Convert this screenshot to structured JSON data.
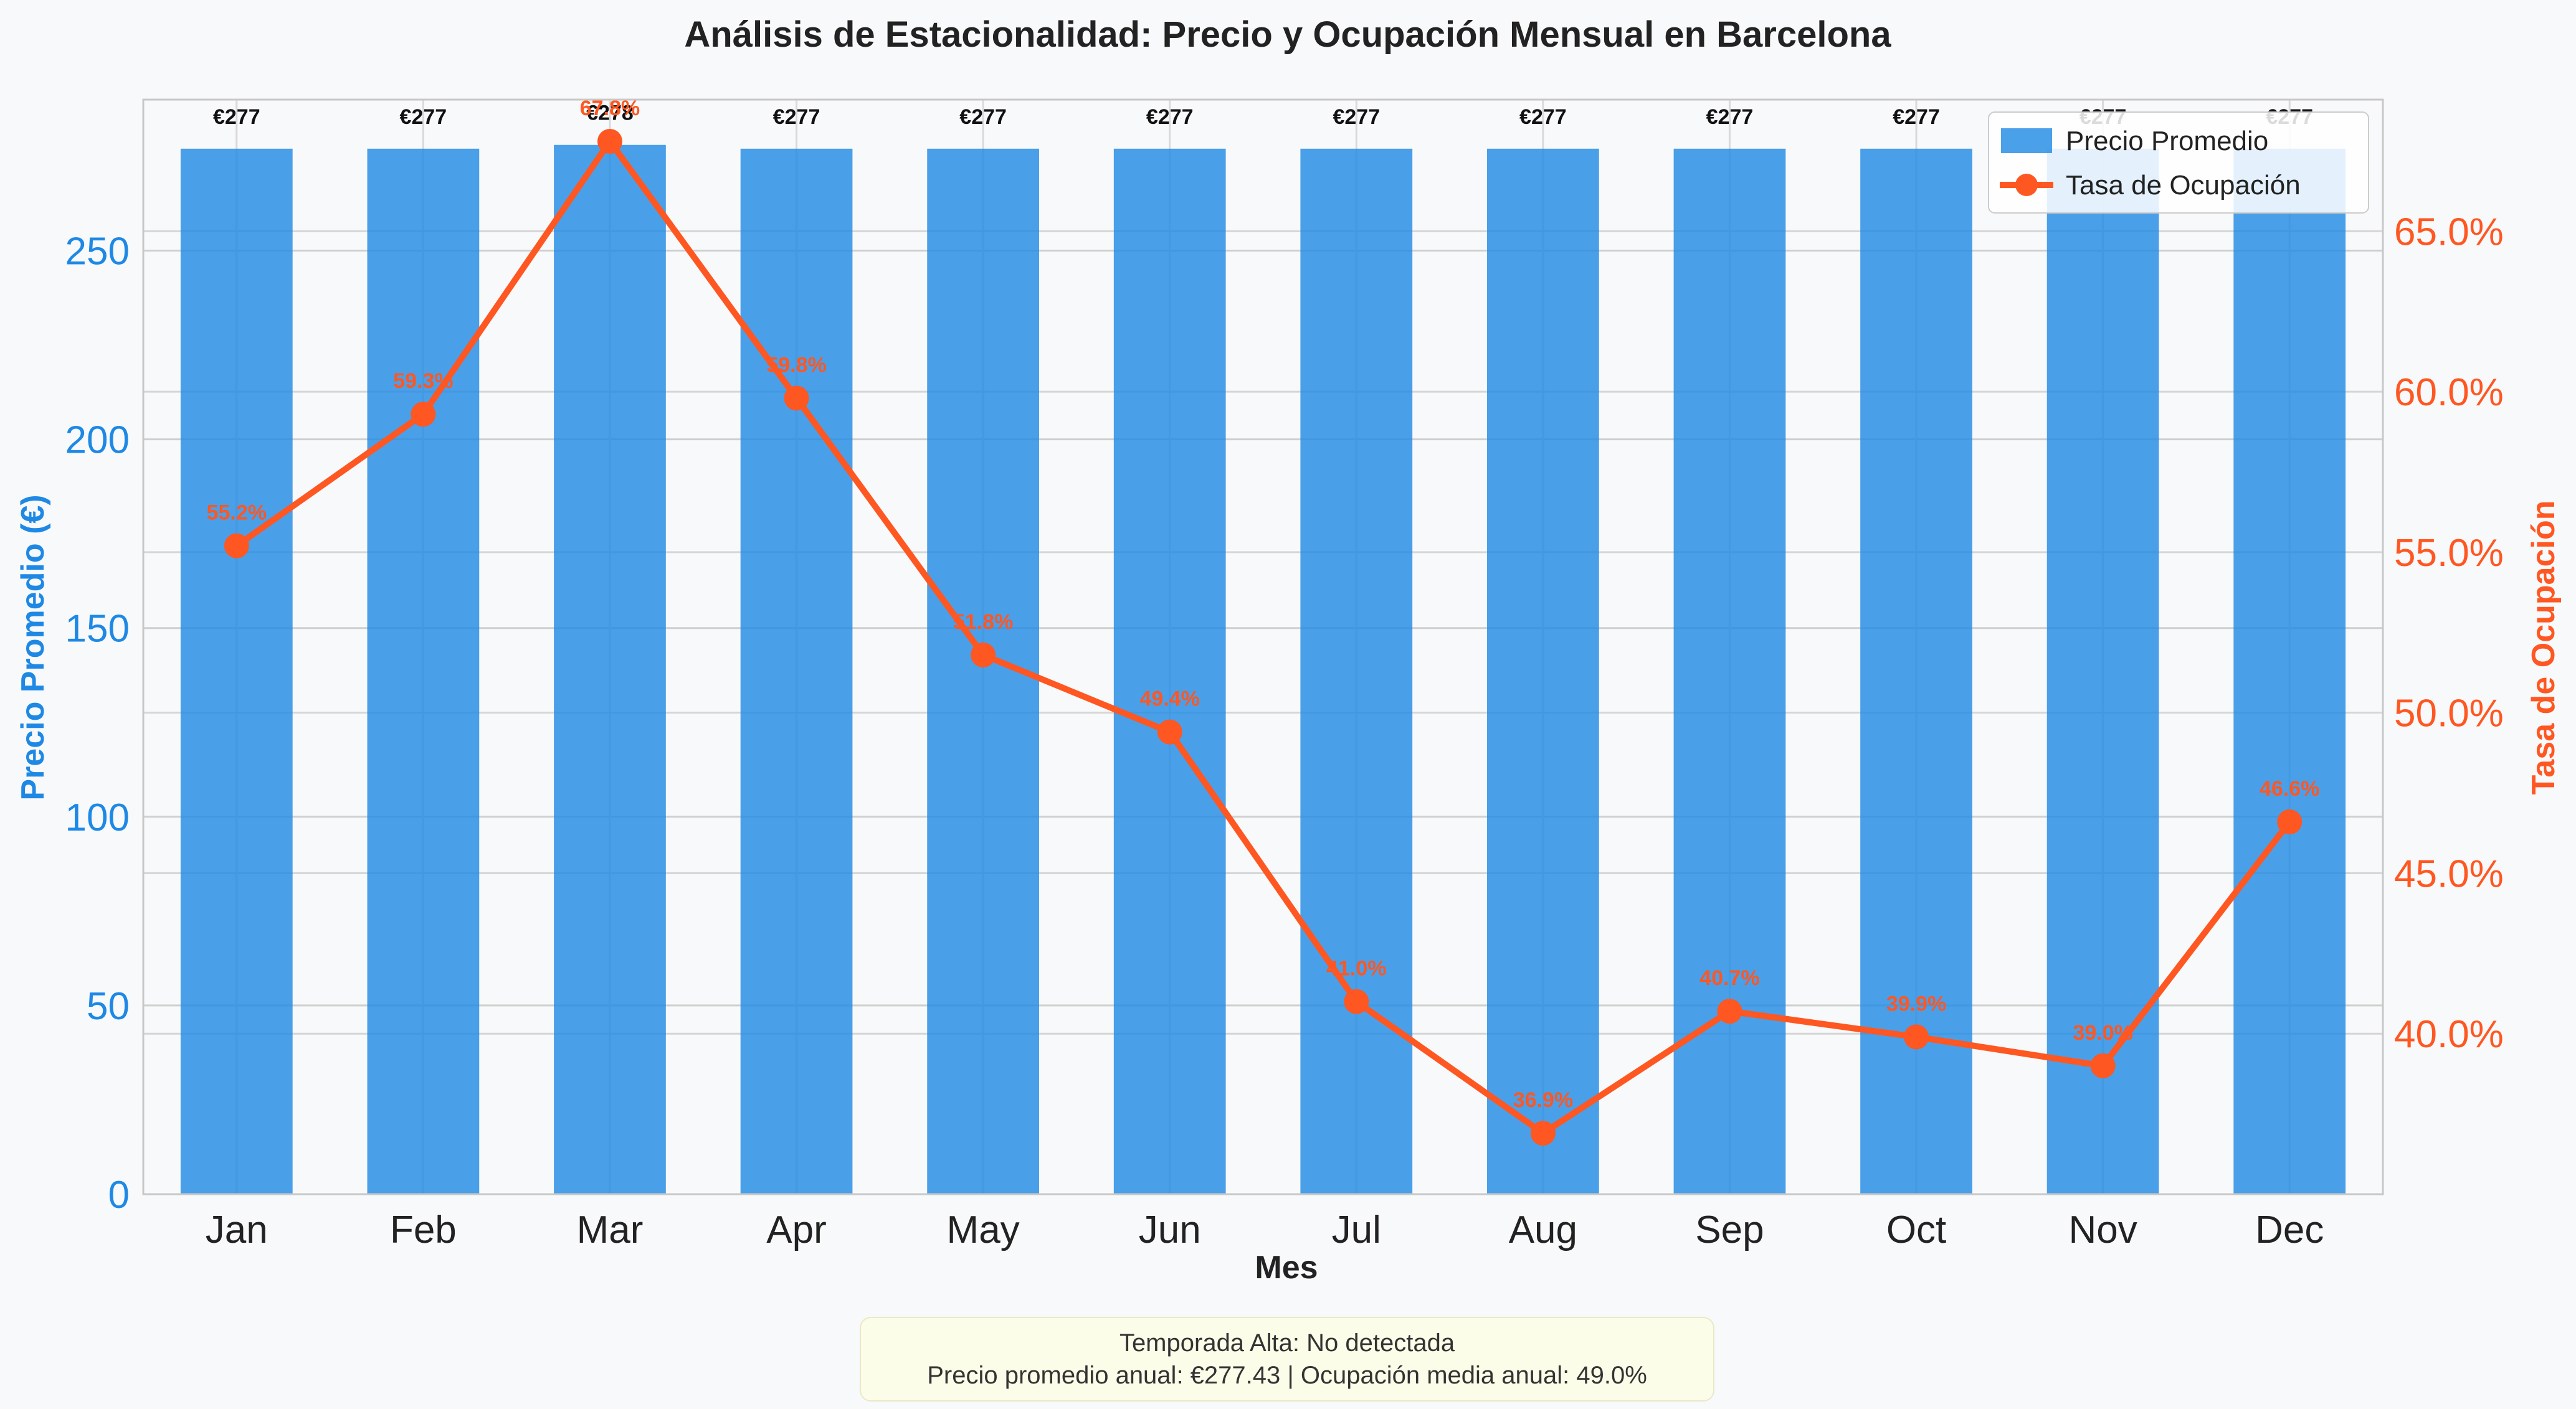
{
  "chart_data": {
    "type": "bar+line",
    "title": "Análisis de Estacionalidad: Precio y Ocupación Mensual en Barcelona",
    "xlabel": "Mes",
    "ylabel_left": "Precio Promedio (€)",
    "ylabel_right": "Tasa de Ocupación",
    "categories": [
      "Jan",
      "Feb",
      "Mar",
      "Apr",
      "May",
      "Jun",
      "Jul",
      "Aug",
      "Sep",
      "Oct",
      "Nov",
      "Dec"
    ],
    "ylim_left": [
      0,
      290
    ],
    "ylim_right": [
      35,
      69.1
    ],
    "yticks_left": [
      0,
      50,
      100,
      150,
      200,
      250
    ],
    "yticks_right": [
      40,
      45,
      50,
      55,
      60,
      65
    ],
    "yticks_right_labels": [
      "40.0%",
      "45.0%",
      "50.0%",
      "55.0%",
      "60.0%",
      "65.0%"
    ],
    "grid": true,
    "legend_position": "top-right",
    "series": [
      {
        "name": "Precio Promedio",
        "kind": "bar",
        "axis": "left",
        "color": "#1e88e5",
        "values": [
          277,
          277,
          278,
          277,
          277,
          277,
          277,
          277,
          277,
          277,
          277,
          277
        ],
        "labels": [
          "€277",
          "€277",
          "€278",
          "€277",
          "€277",
          "€277",
          "€277",
          "€277",
          "€277",
          "€277",
          "€277",
          "€277"
        ]
      },
      {
        "name": "Tasa de Ocupación",
        "kind": "line",
        "axis": "right",
        "color": "#ff5722",
        "values": [
          55.2,
          59.3,
          67.8,
          59.8,
          51.8,
          49.4,
          41.0,
          36.9,
          40.7,
          39.9,
          39.0,
          46.6
        ],
        "labels": [
          "55.2%",
          "59.3%",
          "67.8%",
          "59.8%",
          "51.8%",
          "49.4%",
          "41.0%",
          "36.9%",
          "40.7%",
          "39.9%",
          "39.0%",
          "46.6%"
        ]
      }
    ]
  },
  "summary": {
    "line1": "Temporada Alta: No detectada",
    "line2": "Precio promedio anual: €277.43 | Ocupación media anual: 49.0%"
  }
}
